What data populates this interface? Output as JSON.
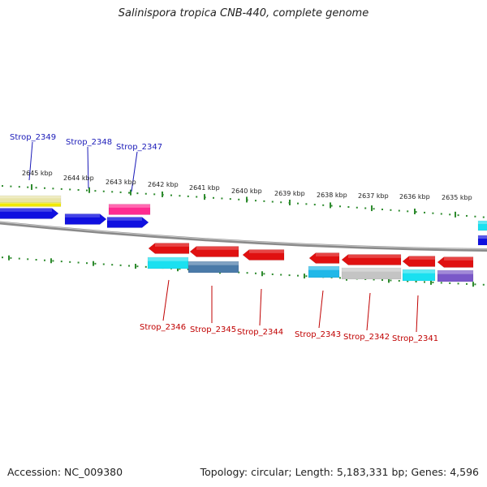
{
  "title": "Salinispora tropica CNB-440, complete genome",
  "accession": "Accession: NC_009380",
  "summary": "Topology: circular; Length: 5,183,331 bp; Genes: 4,596",
  "scale_labels": [
    "2645 kbp",
    "2644 kbp",
    "2643 kbp",
    "2642 kbp",
    "2641 kbp",
    "2640 kbp",
    "2639 kbp",
    "2638 kbp",
    "2637 kbp",
    "2636 kbp",
    "2635 kbp"
  ],
  "genes_forward": [
    "Strop_2349",
    "Strop_2348",
    "Strop_2347"
  ],
  "genes_reverse": [
    "Strop_2346",
    "Strop_2345",
    "Strop_2344",
    "Strop_2343",
    "Strop_2342",
    "Strop_2341"
  ],
  "colors": {
    "backbone": "#8a8a8a",
    "tick": "#2e8b2e",
    "forward_cds": "#1010e0",
    "reverse_cds": "#e01010",
    "forward_label": "#1a1ab8",
    "reverse_label": "#c00000",
    "yellow": "#f0e800",
    "khaki": "#e8e4a8",
    "pink": "#ff2a90",
    "cyan": "#1ae0f0",
    "steel": "#4a7aa8",
    "sky": "#20b8e8",
    "gray": "#c4c4c4",
    "purple": "#7a58c8"
  }
}
